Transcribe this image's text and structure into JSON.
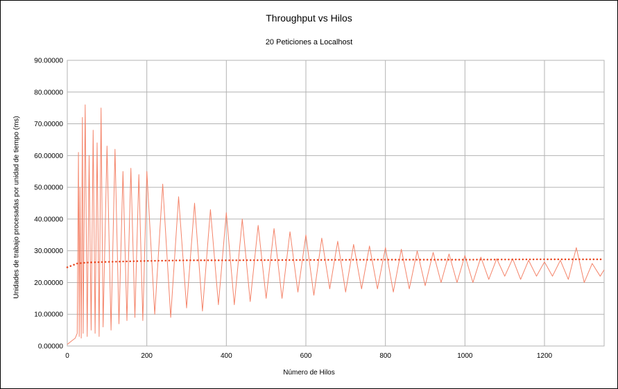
{
  "chart_data": {
    "type": "line",
    "title": "Throughput vs Hilos",
    "subtitle": "20 Peticiones a Localhost",
    "xlabel": "Número de Hilos",
    "ylabel": "Unidades de trabajo procesadas por unidad de tiempo (ms)",
    "xlim": [
      0,
      1350
    ],
    "ylim": [
      0,
      90
    ],
    "x_ticks": [
      0,
      200,
      400,
      600,
      800,
      1000,
      1200
    ],
    "x_tick_labels": [
      "0",
      "200",
      "400",
      "600",
      "800",
      "1000",
      "1200"
    ],
    "y_ticks": [
      0,
      10,
      20,
      30,
      40,
      50,
      60,
      70,
      80,
      90
    ],
    "y_tick_labels": [
      "0.00000",
      "10.00000",
      "20.00000",
      "30.00000",
      "40.00000",
      "50.00000",
      "60.00000",
      "70.00000",
      "80.00000",
      "90.00000"
    ],
    "grid": true,
    "legend": "none",
    "series": [
      {
        "style": "line",
        "color": "#f4846a",
        "x": [
          0,
          10,
          20,
          25,
          28,
          30,
          32,
          35,
          38,
          40,
          45,
          50,
          55,
          60,
          65,
          70,
          75,
          80,
          85,
          90,
          100,
          110,
          120,
          130,
          140,
          150,
          160,
          170,
          180,
          190,
          200,
          220,
          240,
          260,
          280,
          300,
          320,
          340,
          360,
          380,
          400,
          420,
          440,
          460,
          480,
          500,
          520,
          540,
          560,
          580,
          600,
          620,
          640,
          660,
          680,
          700,
          720,
          740,
          760,
          780,
          800,
          820,
          840,
          860,
          880,
          900,
          920,
          940,
          960,
          980,
          1000,
          1020,
          1040,
          1060,
          1080,
          1100,
          1120,
          1140,
          1160,
          1180,
          1200,
          1220,
          1240,
          1260,
          1280,
          1300,
          1320,
          1340,
          1350
        ],
        "y": [
          0.5,
          1.5,
          2.5,
          4,
          61,
          3,
          50,
          2.5,
          72,
          4,
          76,
          3,
          60,
          5,
          68,
          4,
          64,
          3,
          75,
          6,
          63,
          5,
          62,
          7,
          55,
          8,
          56,
          9,
          54,
          8,
          55,
          10,
          51,
          9,
          47,
          12,
          45,
          11,
          43,
          13,
          42,
          13,
          40,
          14,
          38,
          15,
          37,
          15,
          36,
          17,
          35,
          16,
          34,
          18,
          33,
          17,
          32,
          18,
          31.5,
          18,
          31,
          17,
          30.5,
          18,
          30,
          19,
          29.5,
          20,
          29,
          20,
          28.5,
          20,
          28,
          21,
          27.5,
          22,
          27.5,
          21,
          27,
          22,
          26.5,
          22,
          27,
          21,
          31,
          20,
          26,
          22,
          24
        ]
      },
      {
        "style": "dotted",
        "color": "#e8431c",
        "x": [
          0,
          25,
          50,
          100,
          200,
          300,
          400,
          600,
          800,
          1000,
          1200,
          1350
        ],
        "y": [
          24.8,
          26,
          26.3,
          26.5,
          26.8,
          27,
          27,
          27.1,
          27.2,
          27.2,
          27.3,
          27.3
        ]
      }
    ]
  }
}
